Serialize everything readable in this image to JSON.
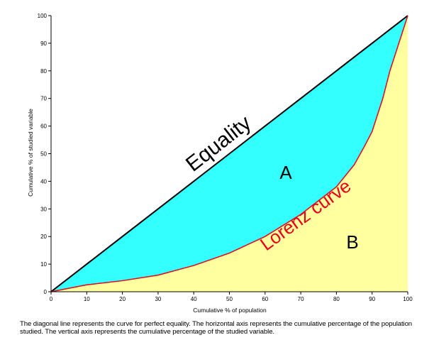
{
  "chart_data": {
    "type": "line",
    "x_label": "Cumulative % of population",
    "y_label": "Cumulative % of studied variable",
    "caption": "The diagonal line represents the curve for perfect equality. The horizontal axis represents the cumulative percentage of the population studied. The vertical axis represents the cumulative percentage of the studied variable.",
    "x": [
      0,
      10,
      20,
      30,
      40,
      50,
      60,
      70,
      80,
      85,
      88,
      90,
      93,
      95,
      97,
      100
    ],
    "series": [
      {
        "color": "#000000",
        "fill": "#33ffff",
        "values": [
          0,
          10,
          20,
          30,
          40,
          50,
          60,
          70,
          80,
          85,
          88,
          90,
          93,
          95,
          97,
          100
        ]
      },
      {
        "color": "#e8001c",
        "fill": "#ffffa0",
        "values": [
          0,
          2.5,
          4,
          6,
          9.5,
          14,
          20,
          28,
          38,
          46,
          53,
          58,
          70,
          80,
          88,
          100
        ]
      }
    ],
    "annotations": [
      "Equality",
      "A",
      "B",
      "Lorenz curve"
    ],
    "annotation_colors": [
      "#000000",
      "#000000",
      "#000000",
      "#e8001c"
    ],
    "xlim": [
      0,
      100
    ],
    "ylim": [
      0,
      100
    ],
    "xticks": [
      0,
      10,
      20,
      30,
      40,
      50,
      60,
      70,
      80,
      90,
      100
    ],
    "yticks": [
      0,
      10,
      20,
      30,
      40,
      50,
      60,
      70,
      80,
      90,
      100
    ]
  }
}
